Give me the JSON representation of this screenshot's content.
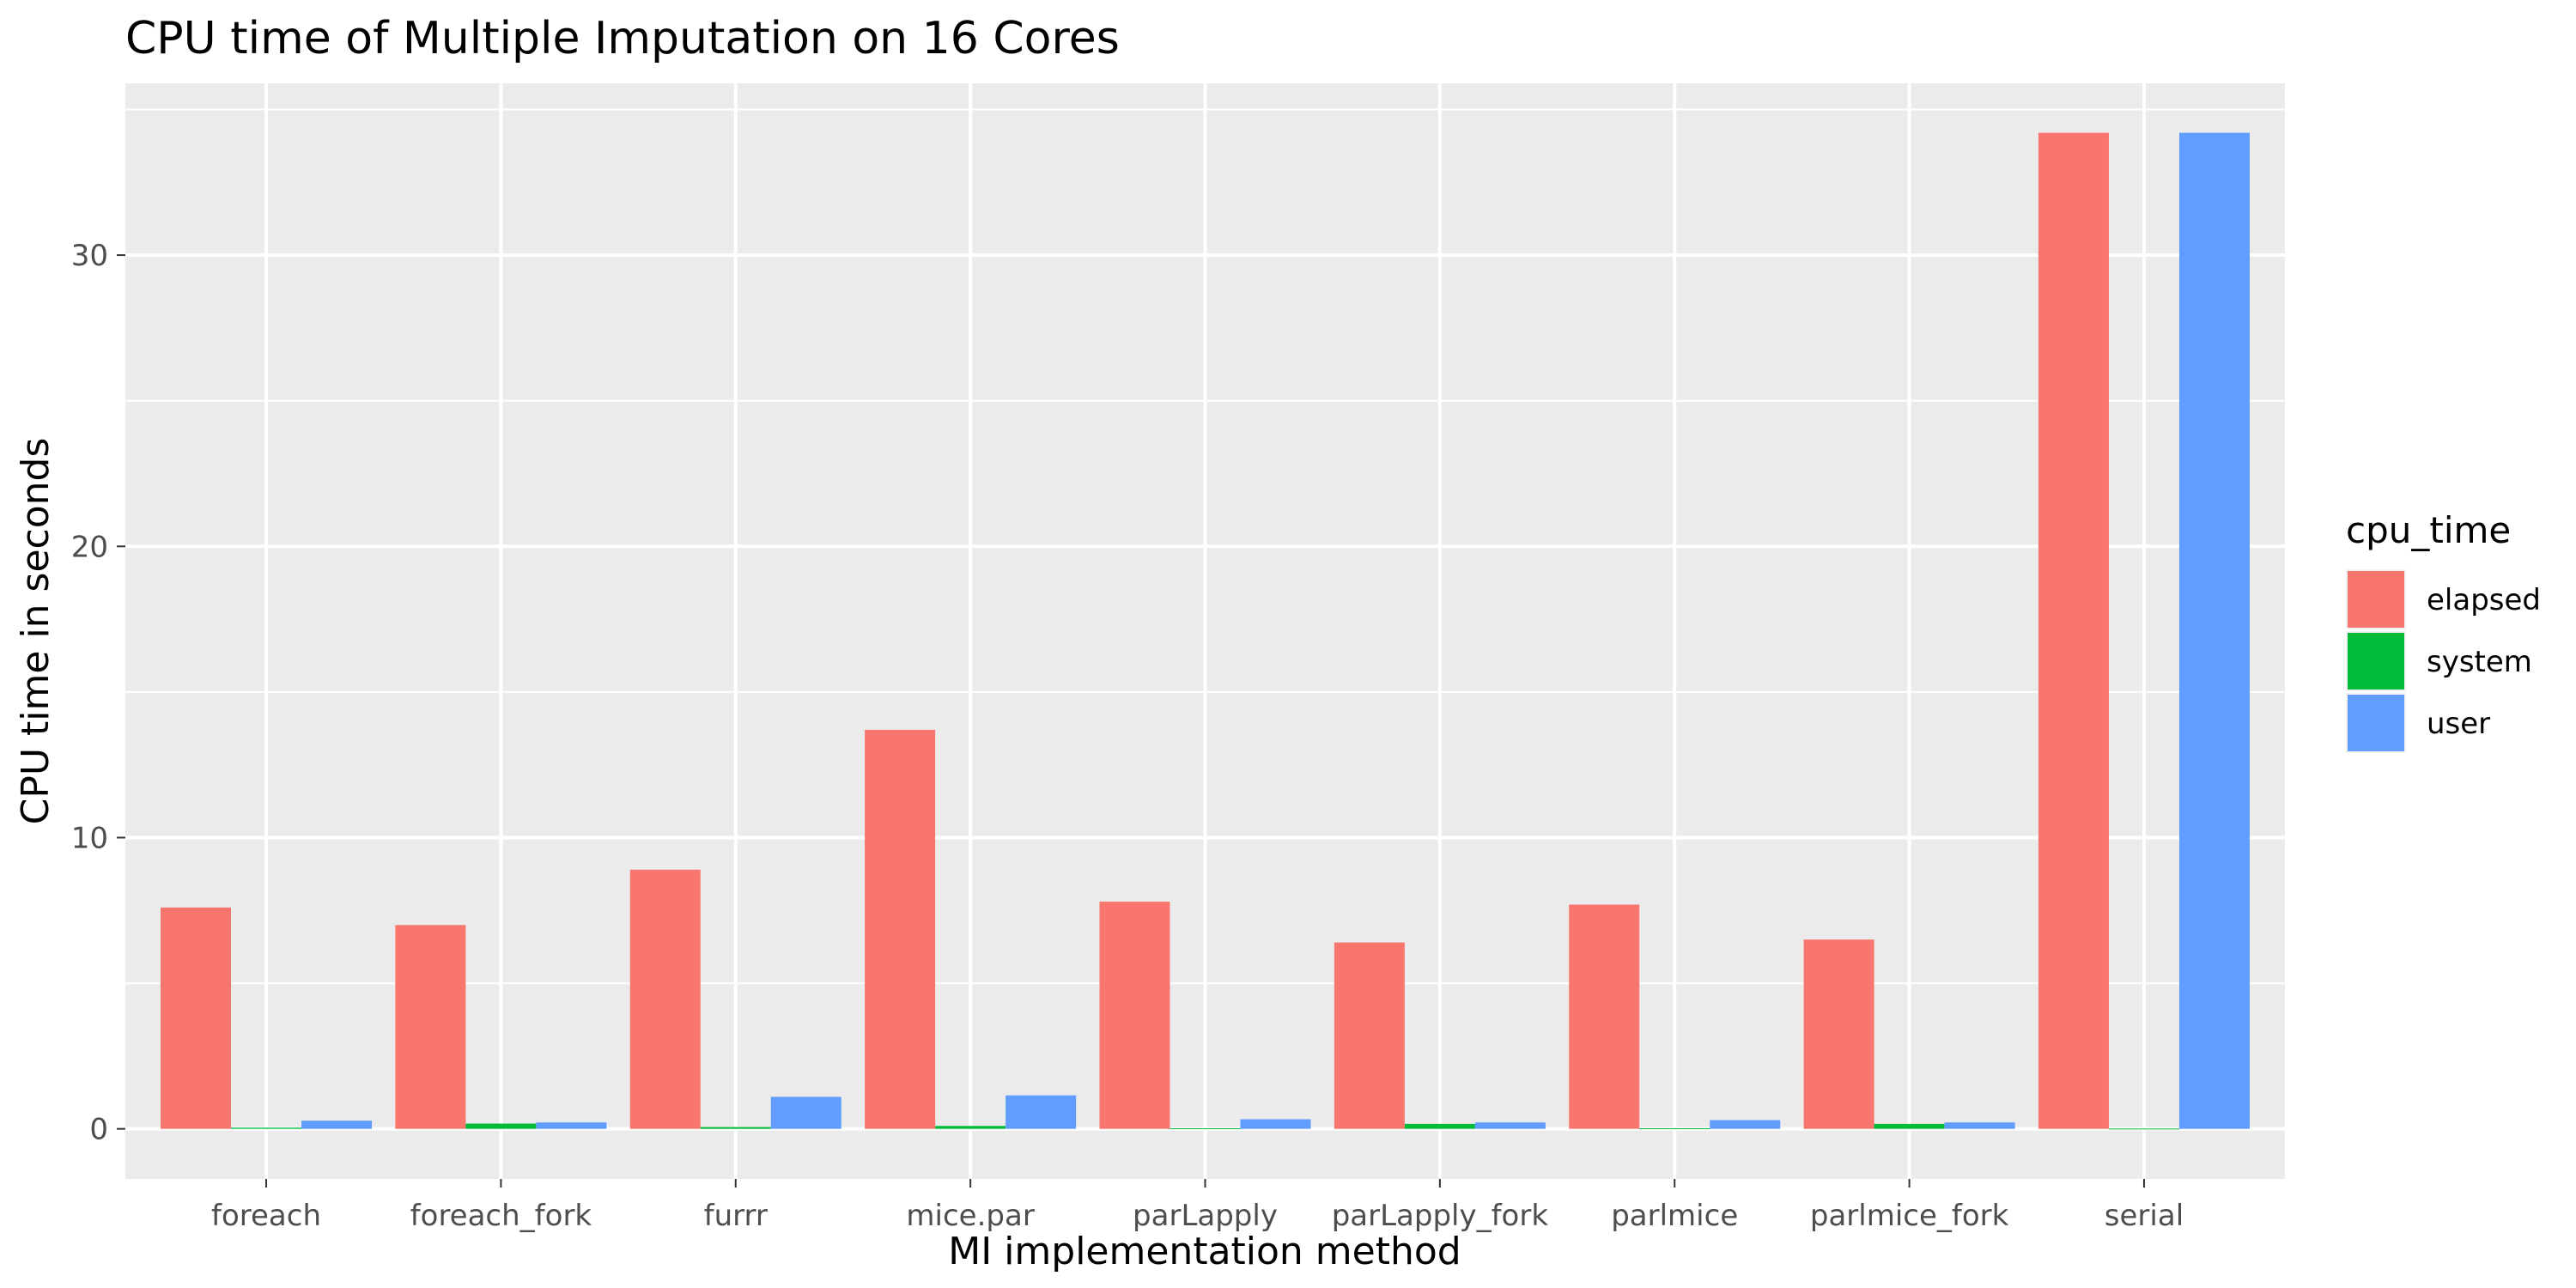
{
  "chart_data": {
    "type": "bar",
    "title": "CPU time of Multiple Imputation on 16 Cores",
    "xlabel": "MI implementation method",
    "ylabel": "CPU time in seconds",
    "categories": [
      "foreach",
      "foreach_fork",
      "furrr",
      "mice.par",
      "parLapply",
      "parLapply_fork",
      "parlmice",
      "parlmice_fork",
      "serial"
    ],
    "series": [
      {
        "name": "elapsed",
        "color": "#F8766D",
        "values": [
          7.6,
          7.0,
          8.9,
          13.7,
          7.8,
          6.4,
          7.7,
          6.5,
          34.2
        ]
      },
      {
        "name": "system",
        "color": "#00BA38",
        "values": [
          0.04,
          0.18,
          0.06,
          0.1,
          0.02,
          0.17,
          0.02,
          0.17,
          0.01
        ]
      },
      {
        "name": "user",
        "color": "#619CFF",
        "values": [
          0.28,
          0.22,
          1.1,
          1.15,
          0.33,
          0.22,
          0.3,
          0.22,
          34.2
        ]
      }
    ],
    "yticks": [
      0,
      10,
      20,
      30
    ],
    "ylim": [
      -1.72,
      35.9
    ],
    "grid": true,
    "legend": {
      "title": "cpu_time",
      "position": "right"
    },
    "panel_background": "#EBEBEB",
    "grid_color": "#FFFFFF"
  }
}
